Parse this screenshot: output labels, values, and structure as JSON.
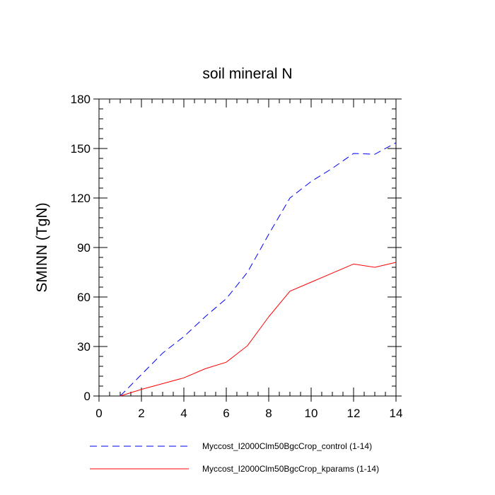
{
  "chart_data": {
    "type": "line",
    "title": "soil mineral N",
    "xlabel": "",
    "ylabel": "SMINN  (TgN)",
    "xlim": [
      0,
      14
    ],
    "ylim": [
      0,
      180
    ],
    "xticks": [
      0,
      2,
      4,
      6,
      8,
      10,
      12,
      14
    ],
    "yticks": [
      0,
      30,
      60,
      90,
      120,
      150,
      180
    ],
    "grid": false,
    "legend_position": "bottom",
    "x": [
      1,
      2,
      3,
      4,
      5,
      6,
      7,
      8,
      9,
      10,
      11,
      12,
      13,
      14
    ],
    "series": [
      {
        "name": "Myccost_I2000Clm50BgcCrop_control (1-14)",
        "color": "#0000ff",
        "dash": "dashed",
        "values": [
          0,
          13,
          26,
          36,
          48,
          59,
          75,
          98,
          120,
          130,
          138,
          147,
          146.5,
          153.5
        ]
      },
      {
        "name": "Myccost_I2000Clm50BgcCrop_kparams (1-14)",
        "color": "#ff0000",
        "dash": "solid",
        "values": [
          0,
          4,
          7.5,
          11,
          16.5,
          20.5,
          30.5,
          48,
          63.5,
          69,
          74.5,
          80,
          78,
          81
        ]
      }
    ]
  }
}
